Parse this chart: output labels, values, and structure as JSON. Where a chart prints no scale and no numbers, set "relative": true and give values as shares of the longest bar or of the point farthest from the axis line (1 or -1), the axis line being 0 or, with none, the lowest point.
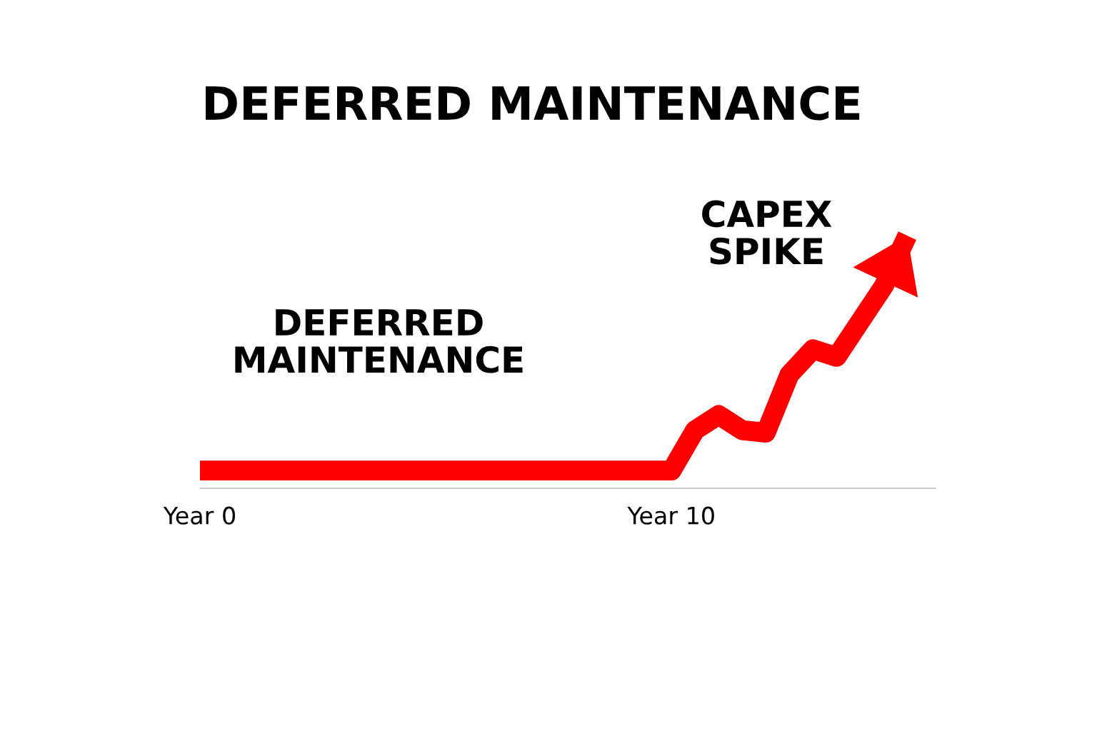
{
  "chart_data": {
    "type": "line",
    "title": "DEFERRED MAINTENANCE",
    "categories": [
      "Year 0",
      null,
      null,
      null,
      null,
      null,
      null,
      null,
      null,
      null,
      null,
      null,
      null,
      null,
      null,
      null,
      null,
      null,
      null,
      null,
      "Year 10",
      null,
      null,
      null,
      null,
      null,
      null,
      null,
      null,
      null,
      null
    ],
    "series": [
      {
        "color": "#ff0000",
        "values": [
          0.07,
          0.07,
          0.07,
          0.07,
          0.07,
          0.07,
          0.07,
          0.07,
          0.07,
          0.07,
          0.07,
          0.07,
          0.07,
          0.07,
          0.07,
          0.07,
          0.07,
          0.07,
          0.07,
          0.07,
          0.07,
          0.23,
          0.29,
          0.23,
          0.22,
          0.45,
          0.55,
          0.52,
          0.66,
          0.8,
          1.0
        ]
      }
    ],
    "relative": true,
    "annotations": [
      "DEFERRED\nMAINTENANCE",
      "CAPEX\nSPIKE"
    ],
    "grid": false,
    "legend": false,
    "marker": "none",
    "line_style": "solid"
  }
}
